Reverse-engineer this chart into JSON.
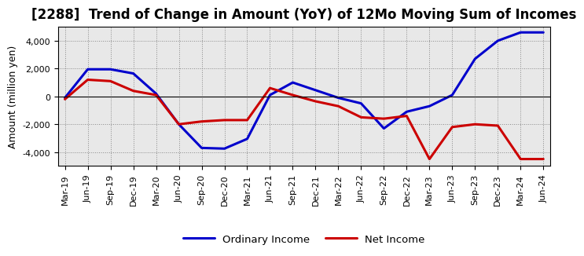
{
  "title": "[2288]  Trend of Change in Amount (YoY) of 12Mo Moving Sum of Incomes",
  "ylabel": "Amount (million yen)",
  "x_labels": [
    "Mar-19",
    "Jun-19",
    "Sep-19",
    "Dec-19",
    "Mar-20",
    "Jun-20",
    "Sep-20",
    "Dec-20",
    "Mar-21",
    "Jun-21",
    "Sep-21",
    "Dec-21",
    "Mar-22",
    "Jun-22",
    "Sep-22",
    "Dec-22",
    "Mar-23",
    "Jun-23",
    "Sep-23",
    "Dec-23",
    "Mar-24",
    "Jun-24"
  ],
  "ordinary_income": [
    -100,
    1950,
    1950,
    1650,
    200,
    -2000,
    -3700,
    -3750,
    -3050,
    100,
    1000,
    450,
    -100,
    -500,
    -2300,
    -1100,
    -700,
    100,
    2700,
    4000,
    4600,
    4600
  ],
  "net_income": [
    -200,
    1200,
    1100,
    400,
    100,
    -2000,
    -1800,
    -1700,
    -1700,
    600,
    100,
    -350,
    -700,
    -1500,
    -1600,
    -1400,
    -4500,
    -2200,
    -2000,
    -2100,
    -4500,
    -4500
  ],
  "ordinary_color": "#0000cc",
  "net_color": "#cc0000",
  "ylim": [
    -5000,
    5000
  ],
  "yticks": [
    -4000,
    -2000,
    0,
    2000,
    4000
  ],
  "background_color": "#ffffff",
  "plot_bg_color": "#e8e8e8",
  "grid_color": "#888888",
  "legend_labels": [
    "Ordinary Income",
    "Net Income"
  ],
  "title_fontsize": 12,
  "tick_fontsize": 8,
  "ylabel_fontsize": 9
}
